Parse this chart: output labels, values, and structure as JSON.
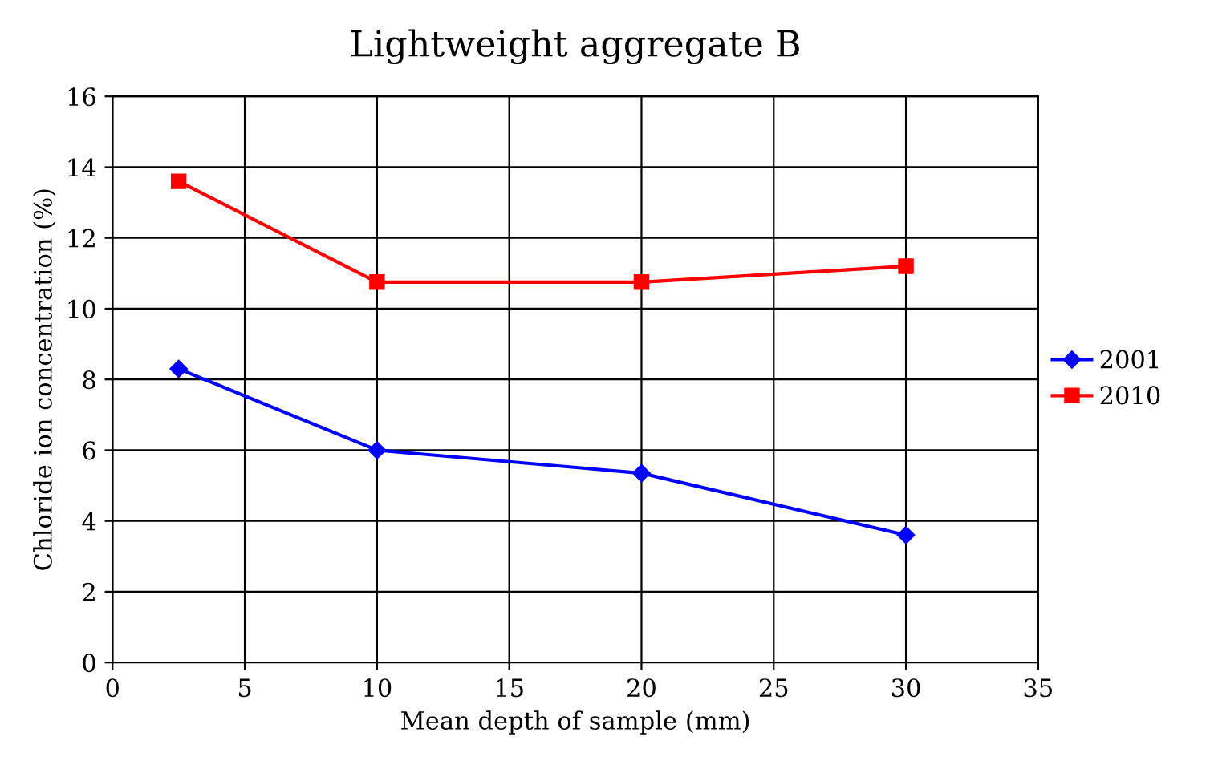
{
  "chart_data": {
    "type": "line",
    "title": "Lightweight aggregate B",
    "xlabel": "Mean depth of sample (mm)",
    "ylabel": "Chloride ion concentration (%)",
    "x": [
      2.5,
      10,
      20,
      30
    ],
    "series": [
      {
        "name": "2001",
        "color": "#0000ff",
        "values": [
          8.3,
          6.0,
          5.35,
          3.6
        ],
        "marker": "diamond"
      },
      {
        "name": "2010",
        "color": "#ff0000",
        "values": [
          13.6,
          10.75,
          10.75,
          11.2
        ],
        "marker": "square"
      }
    ],
    "xlim": [
      0,
      35
    ],
    "xticks": [
      0,
      5,
      10,
      15,
      20,
      25,
      30,
      35
    ],
    "ylim": [
      0,
      16
    ],
    "yticks": [
      0,
      2,
      4,
      6,
      8,
      10,
      12,
      14,
      16
    ],
    "grid": true,
    "legend": "right",
    "line_style": "solid"
  }
}
